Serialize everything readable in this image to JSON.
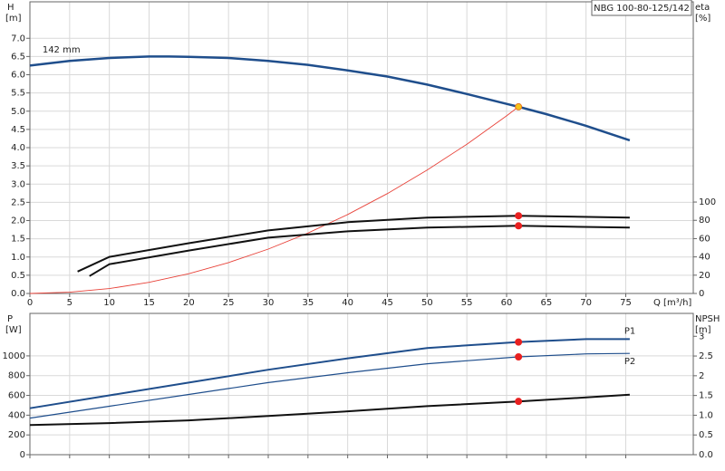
{
  "chart_data": [
    {
      "type": "line",
      "title": "NBG 100-80-125/142",
      "xlabel": "Q [m³/h]",
      "ylabel": "H",
      "yunit": "[m]",
      "y2label": "eta",
      "y2unit": "[%]",
      "xlim": [
        0,
        83.5
      ],
      "xticks": [
        0,
        5,
        10,
        15,
        20,
        25,
        30,
        35,
        40,
        45,
        50,
        55,
        60,
        65,
        70,
        75
      ],
      "ylim": [
        0,
        8
      ],
      "yticks": [
        {
          "value": 0,
          "label": "0.0"
        },
        0.5,
        {
          "value": 1,
          "label": "1.0"
        },
        1.5,
        {
          "value": 2,
          "label": "2.0"
        },
        2.5,
        {
          "value": 3,
          "label": "3.0"
        },
        3.5,
        {
          "value": 4,
          "label": "4.0"
        },
        4.5,
        {
          "value": 5,
          "label": "5.0"
        },
        5.5,
        {
          "value": 6,
          "label": "6.0"
        },
        6.5,
        {
          "value": 7,
          "label": "7.0"
        }
      ],
      "y2lim": [
        0,
        319
      ],
      "y2ticks": [
        0,
        20,
        40,
        60,
        80,
        100
      ],
      "grid": true,
      "series": [
        {
          "name": "142 mm",
          "color": "#1f4e8c",
          "width": 2.5,
          "x": [
            0,
            5,
            10,
            15,
            17.5,
            20,
            25,
            30,
            35,
            40,
            45,
            50,
            55,
            60,
            61.5,
            65,
            70,
            75.5
          ],
          "values": [
            6.25,
            6.38,
            6.46,
            6.5,
            6.5,
            6.49,
            6.46,
            6.38,
            6.27,
            6.12,
            5.95,
            5.73,
            5.47,
            5.2,
            5.12,
            4.92,
            4.6,
            4.2
          ]
        },
        {
          "color": "#e8433a",
          "width": 0.9,
          "x": [
            0,
            5,
            10,
            15,
            20,
            25,
            30,
            35,
            40,
            45,
            50,
            55,
            60,
            61.5
          ],
          "values": [
            0,
            0.034,
            0.135,
            0.305,
            0.541,
            0.846,
            1.218,
            1.658,
            2.166,
            2.741,
            3.384,
            4.094,
            4.872,
            5.12
          ]
        },
        {
          "color": "#111111",
          "width": 2,
          "axis": "y2",
          "x": [
            6,
            10,
            20,
            30,
            40,
            50,
            61.5,
            75.5
          ],
          "values": [
            24,
            40,
            55,
            69,
            78,
            83,
            85,
            83
          ]
        },
        {
          "color": "#111111",
          "width": 2,
          "axis": "y2",
          "x": [
            7.5,
            10,
            20,
            30,
            40,
            50,
            61.5,
            75.5
          ],
          "values": [
            19,
            32,
            47,
            61,
            68,
            72,
            74,
            72
          ]
        },
        {
          "style": "marker",
          "color": "#f5c518",
          "edge": "#e87722",
          "x": [
            61.5
          ],
          "values": [
            5.12
          ]
        },
        {
          "style": "marker",
          "color": "#e82020",
          "axis": "y2",
          "x": [
            61.5
          ],
          "values": [
            85
          ]
        },
        {
          "style": "marker",
          "color": "#e82020",
          "axis": "y2",
          "x": [
            61.5
          ],
          "values": [
            74
          ]
        }
      ]
    },
    {
      "type": "line",
      "ylabel": "P",
      "yunit": "[W]",
      "y2label": "NPSH",
      "y2unit": "[m]",
      "xlim": [
        0,
        83.5
      ],
      "xticks": [
        0,
        5,
        10,
        15,
        20,
        25,
        30,
        35,
        40,
        45,
        50,
        55,
        60,
        65,
        70,
        75
      ],
      "xtick_labels": false,
      "ylim": [
        0,
        1430
      ],
      "yticks": [
        0,
        200,
        400,
        600,
        800,
        1000
      ],
      "y2lim": [
        0,
        3.58
      ],
      "y2ticks": [
        {
          "value": 0,
          "label": "0.0"
        },
        0.5,
        {
          "value": 1,
          "label": "1.0"
        },
        1.5,
        2,
        2.5,
        3
      ],
      "grid": true,
      "series": [
        {
          "name": "P1",
          "color": "#1f4e8c",
          "width": 2,
          "x": [
            0,
            10,
            20,
            30,
            40,
            50,
            61.5,
            70,
            75.5
          ],
          "values": [
            470,
            600,
            730,
            860,
            975,
            1080,
            1140,
            1170,
            1170
          ]
        },
        {
          "name": "P2",
          "color": "#1f4e8c",
          "width": 1.2,
          "x": [
            0,
            10,
            20,
            30,
            40,
            50,
            61.5,
            70,
            75.5
          ],
          "values": [
            370,
            490,
            610,
            730,
            830,
            920,
            990,
            1020,
            1025
          ]
        },
        {
          "color": "#111111",
          "width": 2,
          "axis": "y2",
          "x": [
            0,
            10,
            20,
            30,
            40,
            50,
            61.5,
            70,
            75.5
          ],
          "values": [
            0.75,
            0.8,
            0.87,
            0.98,
            1.1,
            1.23,
            1.35,
            1.45,
            1.52
          ]
        },
        {
          "style": "marker",
          "color": "#e82020",
          "x": [
            61.5
          ],
          "values": [
            1140
          ]
        },
        {
          "style": "marker",
          "color": "#e82020",
          "x": [
            61.5
          ],
          "values": [
            990
          ]
        },
        {
          "style": "marker",
          "color": "#e82020",
          "axis": "y2",
          "x": [
            61.5
          ],
          "values": [
            1.35
          ]
        }
      ]
    }
  ]
}
